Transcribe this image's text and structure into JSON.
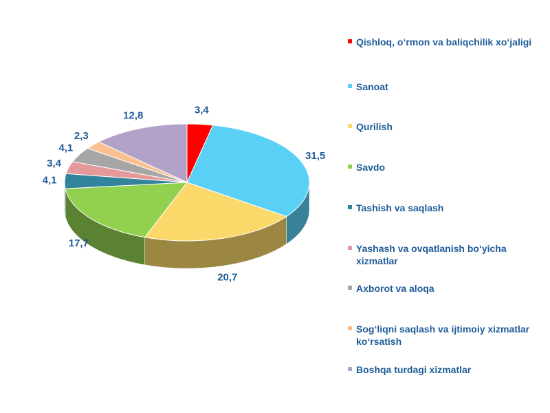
{
  "chart_data": {
    "type": "pie",
    "categories": [
      "Qishloq, o‘rmon va baliqchilik xo‘jaligi",
      "Sanoat",
      "Qurilish",
      "Savdo",
      "Tashish va saqlash",
      "Yashash va ovqatlanish bo‘yicha xizmatlar",
      "Axborot va aloqa",
      "Sog‘liqni saqlash va ijtimoiy xizmatlar ko‘rsatish",
      "Boshqa turdagi xizmatlar"
    ],
    "values": [
      3.4,
      31.5,
      20.7,
      17.7,
      4.1,
      3.4,
      4.1,
      2.3,
      12.8
    ],
    "value_labels": [
      "3,4",
      "31,5",
      "20,7",
      "17,7",
      "4,1",
      "3,4",
      "4,1",
      "2,3",
      "12,8"
    ],
    "colors": [
      "#ff0000",
      "#5bd0f7",
      "#fad86a",
      "#92d050",
      "#31849b",
      "#e6999a",
      "#a6a6a6",
      "#fac090",
      "#b3a2c7"
    ]
  }
}
